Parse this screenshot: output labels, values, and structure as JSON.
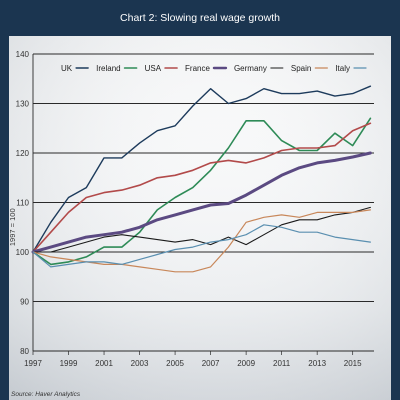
{
  "chart_data": {
    "type": "line",
    "title": "Chart 2: Slowing real wage growth",
    "ylabel": "1997 = 100",
    "source": "Source: Haver Analytics",
    "ylim": [
      80,
      140
    ],
    "yticks": [
      80,
      90,
      100,
      110,
      120,
      130,
      140
    ],
    "xlim": [
      1997,
      2016.2
    ],
    "xticks": [
      1997,
      1999,
      2001,
      2003,
      2005,
      2007,
      2009,
      2011,
      2013,
      2015
    ],
    "grid": true,
    "legend_position": "top",
    "series": [
      {
        "name": "UK",
        "color": "#1d3b5c",
        "width": 1.4,
        "x": [
          1997,
          1998,
          1999,
          2000,
          2001,
          2002,
          2003,
          2004,
          2005,
          2006,
          2007,
          2008,
          2009,
          2010,
          2011,
          2012,
          2013,
          2014,
          2015,
          2016
        ],
        "y": [
          100,
          106,
          111,
          113,
          119,
          119,
          122,
          124.5,
          125.5,
          129.5,
          133,
          130,
          131,
          133,
          132,
          132,
          132.5,
          131.5,
          132,
          133.5
        ]
      },
      {
        "name": "Ireland",
        "color": "#2e8b57",
        "width": 1.6,
        "x": [
          1997,
          1998,
          1999,
          2000,
          2001,
          2002,
          2003,
          2004,
          2005,
          2006,
          2007,
          2008,
          2009,
          2010,
          2011,
          2012,
          2013,
          2014,
          2015,
          2016
        ],
        "y": [
          100,
          97.5,
          98,
          99,
          101,
          101,
          104,
          108.5,
          111,
          113,
          116.5,
          121,
          126.5,
          126.5,
          122.5,
          120.5,
          120.5,
          124,
          121.5,
          127
        ]
      },
      {
        "name": "USA",
        "color": "#b24a4a",
        "width": 1.6,
        "x": [
          1997,
          1998,
          1999,
          2000,
          2001,
          2002,
          2003,
          2004,
          2005,
          2006,
          2007,
          2008,
          2009,
          2010,
          2011,
          2012,
          2013,
          2014,
          2015,
          2016
        ],
        "y": [
          100,
          104,
          108,
          111,
          112,
          112.5,
          113.5,
          115,
          115.5,
          116.5,
          118,
          118.5,
          118,
          119,
          120.5,
          121,
          121,
          121.5,
          124.5,
          126
        ]
      },
      {
        "name": "France",
        "color": "#5b4a82",
        "width": 3,
        "x": [
          1997,
          1998,
          1999,
          2000,
          2001,
          2002,
          2003,
          2004,
          2005,
          2006,
          2007,
          2008,
          2009,
          2010,
          2011,
          2012,
          2013,
          2014,
          2015,
          2016
        ],
        "y": [
          100,
          101,
          102,
          103,
          103.5,
          104,
          105,
          106.5,
          107.5,
          108.5,
          109.5,
          109.8,
          111.5,
          113.5,
          115.5,
          117,
          118,
          118.5,
          119.2,
          120
        ]
      },
      {
        "name": "Germany",
        "color": "#1a1a1a",
        "width": 1.1,
        "x": [
          1997,
          1998,
          1999,
          2000,
          2001,
          2002,
          2003,
          2004,
          2005,
          2006,
          2007,
          2008,
          2009,
          2010,
          2011,
          2012,
          2013,
          2014,
          2015,
          2016
        ],
        "y": [
          100,
          100,
          101,
          102,
          103,
          103.5,
          103,
          102.5,
          102,
          102.5,
          101.5,
          103,
          101.5,
          103.5,
          105.5,
          106.5,
          106.5,
          107.5,
          108,
          109
        ]
      },
      {
        "name": "Spain",
        "color": "#c8875a",
        "width": 1.2,
        "x": [
          1997,
          1998,
          1999,
          2000,
          2001,
          2002,
          2003,
          2004,
          2005,
          2006,
          2007,
          2008,
          2009,
          2010,
          2011,
          2012,
          2013,
          2014,
          2015,
          2016
        ],
        "y": [
          100,
          99,
          98.5,
          98,
          97.5,
          97.5,
          97,
          96.5,
          96,
          96,
          97,
          101,
          106,
          107,
          107.5,
          107,
          108,
          108,
          108,
          108.5
        ]
      },
      {
        "name": "Italy",
        "color": "#5a8fb0",
        "width": 1.2,
        "x": [
          1997,
          1998,
          1999,
          2000,
          2001,
          2002,
          2003,
          2004,
          2005,
          2006,
          2007,
          2008,
          2009,
          2010,
          2011,
          2012,
          2013,
          2014,
          2015,
          2016
        ],
        "y": [
          100,
          97,
          97.5,
          98,
          98,
          97.5,
          98.5,
          99.5,
          100.5,
          101,
          102,
          102.5,
          103.5,
          105.5,
          105,
          104,
          104,
          103,
          102.5,
          102
        ]
      }
    ]
  }
}
